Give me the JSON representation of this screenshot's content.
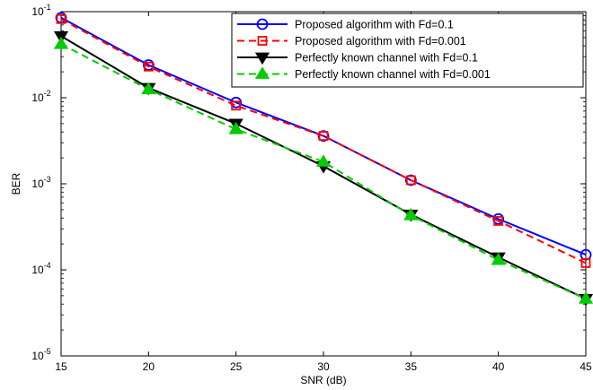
{
  "chart_data": {
    "type": "line",
    "xlabel": "SNR (dB)",
    "ylabel": "BER",
    "xlim": [
      15,
      45
    ],
    "ylim": [
      1e-05,
      0.1
    ],
    "yscale": "log",
    "grid": false,
    "legend_position": "top-right",
    "x": [
      15,
      20,
      25,
      30,
      35,
      40,
      45
    ],
    "x_ticks": [
      "15",
      "20",
      "25",
      "30",
      "35",
      "40",
      "45"
    ],
    "y_ticks": [
      {
        "base": "10",
        "exp": "-5",
        "value": 1e-05
      },
      {
        "base": "10",
        "exp": "-4",
        "value": 0.0001
      },
      {
        "base": "10",
        "exp": "-3",
        "value": 0.001
      },
      {
        "base": "10",
        "exp": "-2",
        "value": 0.01
      },
      {
        "base": "10",
        "exp": "-1",
        "value": 0.1
      }
    ],
    "series": [
      {
        "name": "Proposed algorithm with Fd=0.1",
        "color": "#0000ff",
        "dash": "solid",
        "marker": "circle",
        "values": [
          0.085,
          0.024,
          0.0088,
          0.0036,
          0.0011,
          0.00039,
          0.00015
        ]
      },
      {
        "name": "Proposed algorithm with Fd=0.001",
        "color": "#ff0000",
        "dash": "dashed",
        "marker": "square",
        "values": [
          0.082,
          0.023,
          0.0081,
          0.0036,
          0.0011,
          0.00037,
          0.00012
        ]
      },
      {
        "name": "Perfectly known channel with Fd=0.1",
        "color": "#000000",
        "dash": "solid",
        "marker": "triangle-down",
        "values": [
          0.052,
          0.013,
          0.005,
          0.0016,
          0.00044,
          0.00014,
          4.6e-05
        ]
      },
      {
        "name": "Perfectly known channel with Fd=0.001",
        "color": "#00cc00",
        "dash": "dashed",
        "marker": "triangle-up",
        "values": [
          0.042,
          0.0125,
          0.0043,
          0.0018,
          0.00043,
          0.00013,
          4.6e-05
        ]
      }
    ]
  }
}
